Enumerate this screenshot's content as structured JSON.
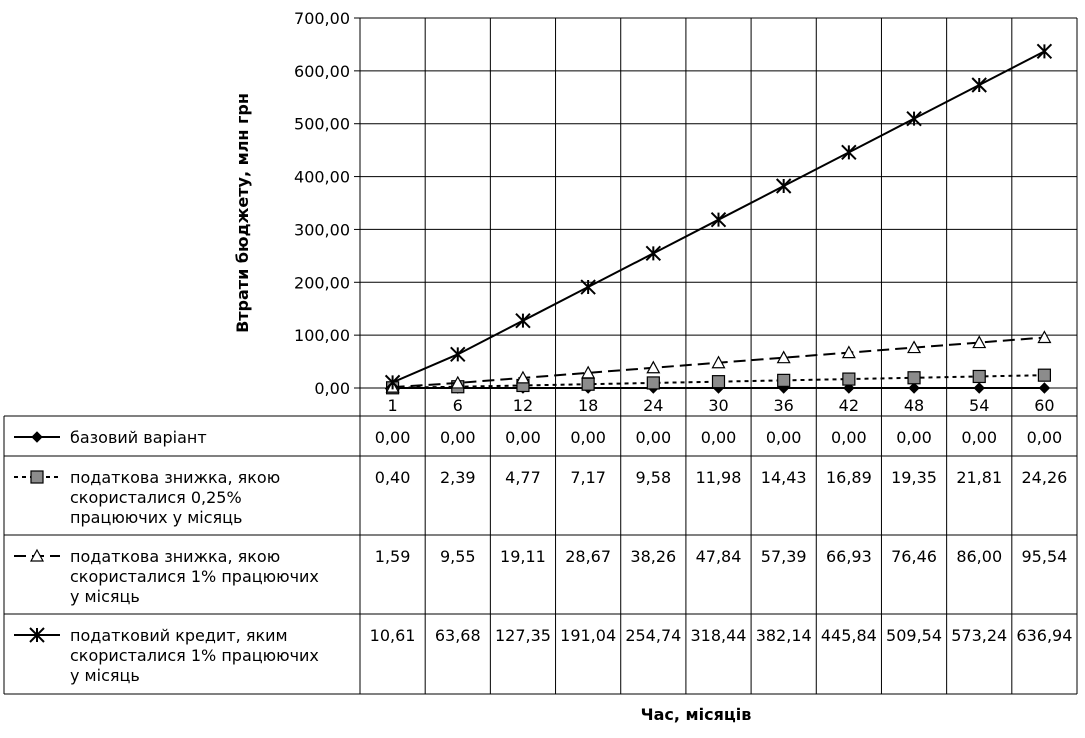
{
  "chart_data": {
    "type": "line",
    "ylabel": "Втрати бюджету, млн грн",
    "xlabel": "Час, місяців",
    "ylim": [
      0,
      700
    ],
    "y_ticks": [
      "0,00",
      "100,00",
      "200,00",
      "300,00",
      "400,00",
      "500,00",
      "600,00",
      "700,00"
    ],
    "grid": true,
    "legend_placement": "data-table-left",
    "categories": [
      "1",
      "6",
      "12",
      "18",
      "24",
      "30",
      "36",
      "42",
      "48",
      "54",
      "60"
    ],
    "series": [
      {
        "name": "базовий варіант",
        "marker": "diamond",
        "dash": "solid",
        "color": "#000000",
        "values": [
          0,
          0,
          0,
          0,
          0,
          0,
          0,
          0,
          0,
          0,
          0
        ],
        "labels": [
          "0,00",
          "0,00",
          "0,00",
          "0,00",
          "0,00",
          "0,00",
          "0,00",
          "0,00",
          "0,00",
          "0,00",
          "0,00"
        ]
      },
      {
        "name": "податкова знижка, якою скористалися 0,25% працюючих у місяць",
        "name_lines": [
          "податкова знижка, якою",
          "скористалися  0,25%",
          "працюючих у місяць"
        ],
        "marker": "square",
        "dash": "dotted",
        "color": "#000000",
        "marker_fill": "#8c8c8c",
        "values": [
          0.4,
          2.39,
          4.77,
          7.17,
          9.58,
          11.98,
          14.43,
          16.89,
          19.35,
          21.81,
          24.26
        ],
        "labels": [
          "0,40",
          "2,39",
          "4,77",
          "7,17",
          "9,58",
          "11,98",
          "14,43",
          "16,89",
          "19,35",
          "21,81",
          "24,26"
        ]
      },
      {
        "name": "податкова знижка, якою скористалися 1% працюючих у місяць",
        "name_lines": [
          "податкова знижка, якою",
          "скористалися 1% працюючих",
          "у місяць"
        ],
        "marker": "triangle",
        "dash": "dashed",
        "color": "#000000",
        "values": [
          1.59,
          9.55,
          19.11,
          28.67,
          38.26,
          47.84,
          57.39,
          66.93,
          76.46,
          86.0,
          95.54
        ],
        "labels": [
          "1,59",
          "9,55",
          "19,11",
          "28,67",
          "38,26",
          "47,84",
          "57,39",
          "66,93",
          "76,46",
          "86,00",
          "95,54"
        ]
      },
      {
        "name": "податковий кредит, яким скористалися 1% працюючих у місяць",
        "name_lines": [
          "податковий кредит, яким",
          "скористалися 1% працюючих",
          "у місяць"
        ],
        "marker": "star",
        "dash": "solid",
        "color": "#000000",
        "values": [
          10.61,
          63.68,
          127.35,
          191.04,
          254.74,
          318.44,
          382.14,
          445.84,
          509.54,
          573.24,
          636.94
        ],
        "labels": [
          "10,61",
          "63,68",
          "127,35",
          "191,04",
          "254,74",
          "318,44",
          "382,14",
          "445,84",
          "509,54",
          "573,24",
          "636,94"
        ]
      }
    ]
  }
}
